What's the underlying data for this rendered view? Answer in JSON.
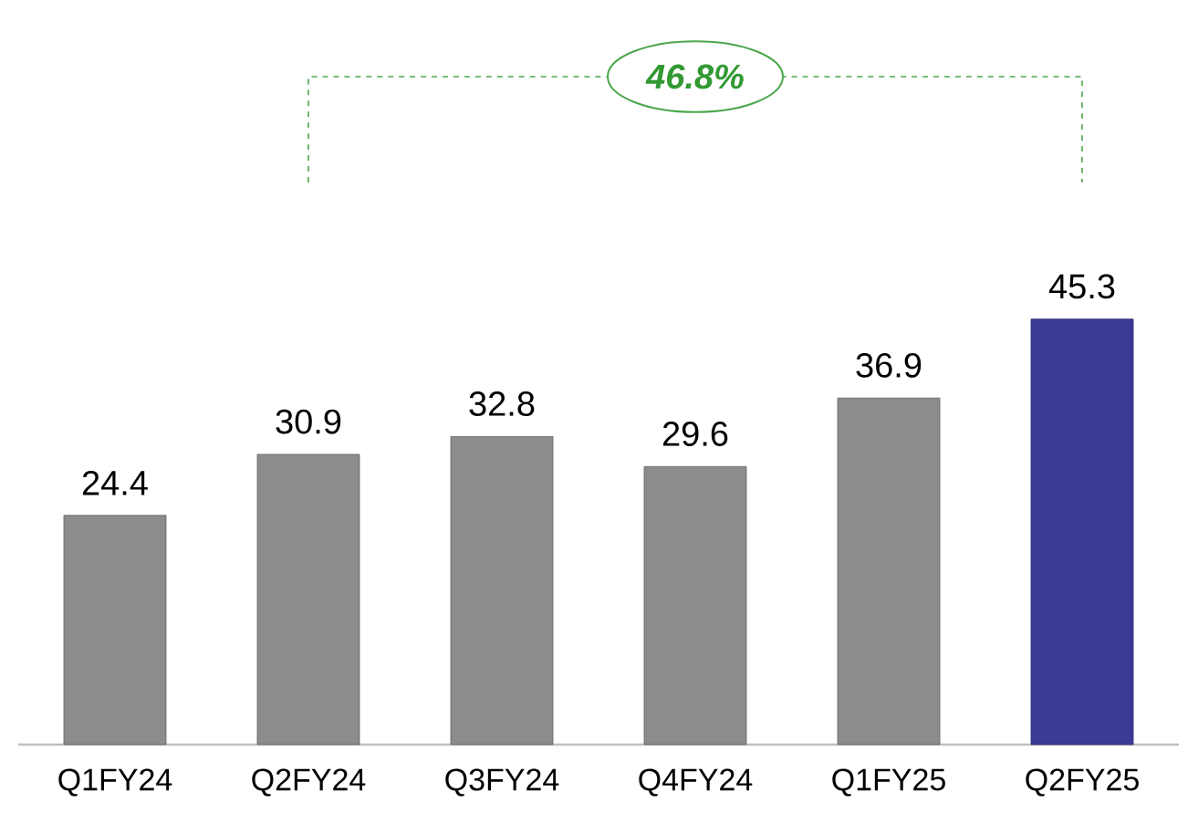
{
  "chart_data": {
    "type": "bar",
    "categories": [
      "Q1FY24",
      "Q2FY24",
      "Q3FY24",
      "Q4FY24",
      "Q1FY25",
      "Q2FY25"
    ],
    "values": [
      24.4,
      30.9,
      32.8,
      29.6,
      36.9,
      45.3
    ],
    "colors": [
      "#8c8c8c",
      "#8c8c8c",
      "#8c8c8c",
      "#8c8c8c",
      "#8c8c8c",
      "#3b3b96"
    ],
    "tick_labels": "x",
    "data_labels": true,
    "annotations": [
      "46.8%"
    ]
  }
}
